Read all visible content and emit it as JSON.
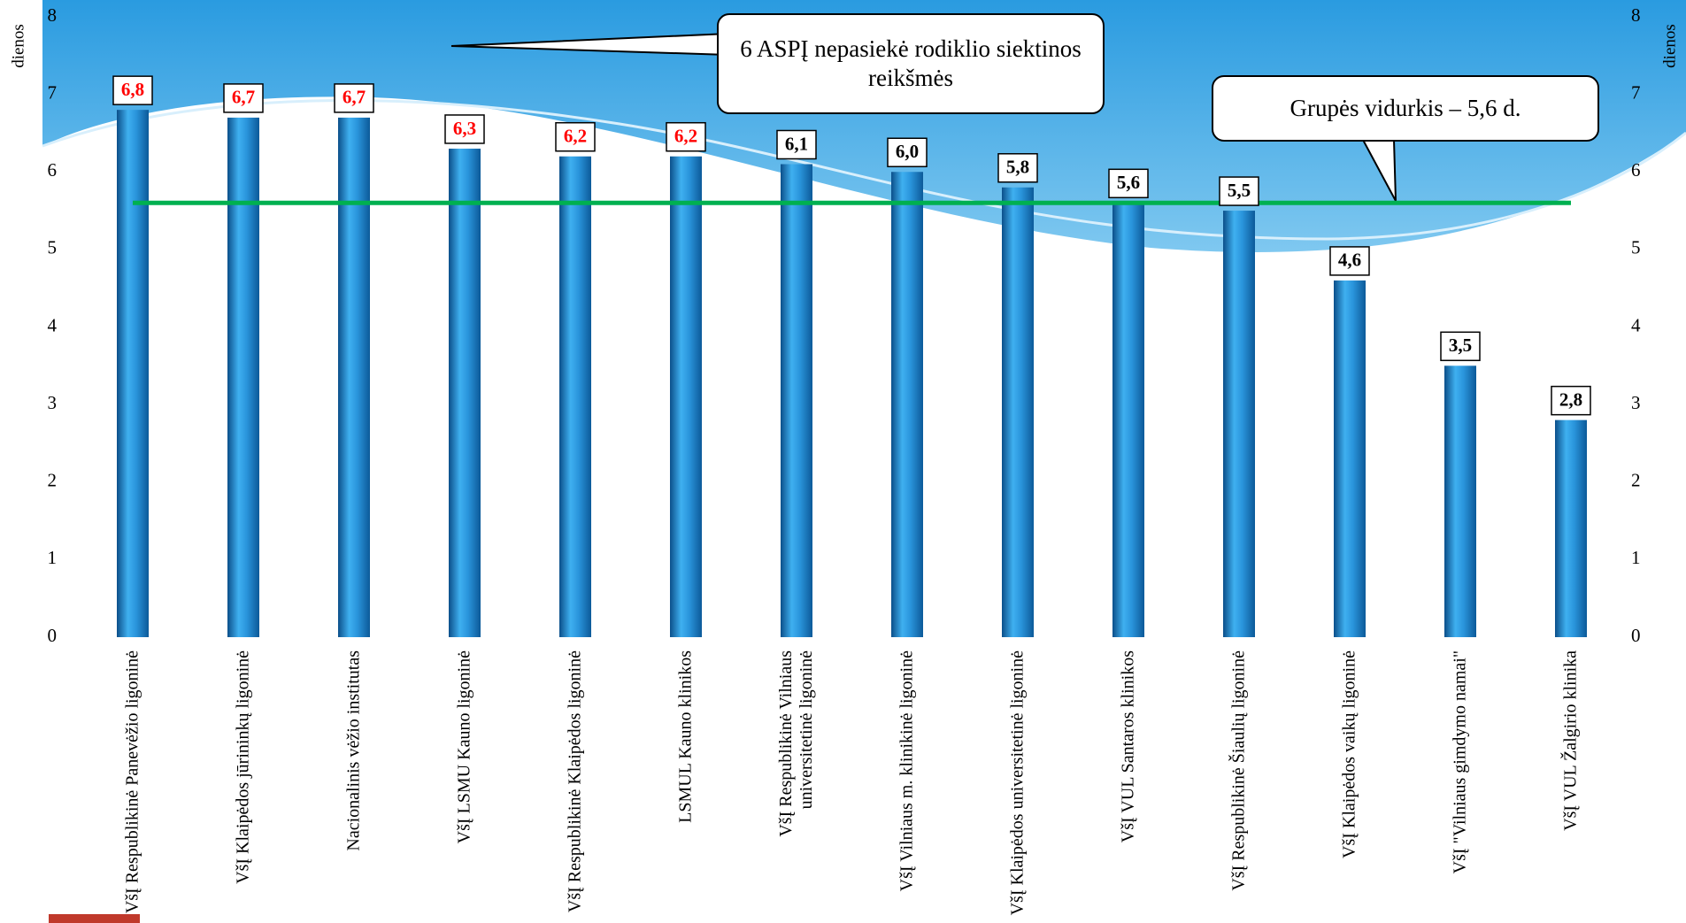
{
  "chart_data": {
    "type": "bar",
    "y_label": "dienos",
    "y2_label": "dienos",
    "categories": [
      "VšĮ Respublikinė Panevėžio ligoninė",
      "VšĮ Klaipėdos jūrininkų ligoninė",
      "Nacionalinis vėžio institutas",
      "VšĮ LSMU Kauno ligoninė",
      "VšĮ Respublikinė Klaipėdos ligoninė",
      "LSMUL Kauno klinikos",
      "VšĮ Respublikinė Vilniaus universitetinė ligoninė",
      "VšĮ Vilniaus m. klinikinė ligoninė",
      "VšĮ Klaipėdos universitetinė ligoninė",
      "VšĮ VUL Santaros klinikos",
      "VšĮ Respublikinė Šiaulių ligoninė",
      "VšĮ Klaipėdos vaikų ligoninė",
      "VšĮ \"Vilniaus gimdymo namai\"",
      "VšĮ VUL Žalgirio klinika"
    ],
    "values": [
      6.8,
      6.7,
      6.7,
      6.3,
      6.2,
      6.2,
      6.1,
      6.0,
      5.8,
      5.6,
      5.5,
      4.6,
      3.5,
      2.8
    ],
    "value_labels": [
      "6,8",
      "6,7",
      "6,7",
      "6,3",
      "6,2",
      "6,2",
      "6,1",
      "6,0",
      "5,8",
      "5,6",
      "5,5",
      "4,6",
      "3,5",
      "2,8"
    ],
    "value_label_colors": [
      "#ff0000",
      "#ff0000",
      "#ff0000",
      "#ff0000",
      "#ff0000",
      "#ff0000",
      "#000000",
      "#000000",
      "#000000",
      "#000000",
      "#000000",
      "#000000",
      "#000000",
      "#000000"
    ],
    "color": "#1f8ad6",
    "ylim": [
      0,
      8
    ],
    "yticks": [
      0,
      1,
      2,
      3,
      4,
      5,
      6,
      7,
      8
    ],
    "y2lim": [
      0,
      8
    ],
    "y2ticks": [
      0,
      1,
      2,
      3,
      4,
      5,
      6,
      7,
      8
    ],
    "grid": false,
    "reference_line": {
      "value": 5.6,
      "color": "#00b050"
    },
    "annotations": [
      "6 ASPĮ nepasiekė rodiklio siektinos reikšmės",
      "Grupės vidurkis – 5,6 d."
    ]
  }
}
